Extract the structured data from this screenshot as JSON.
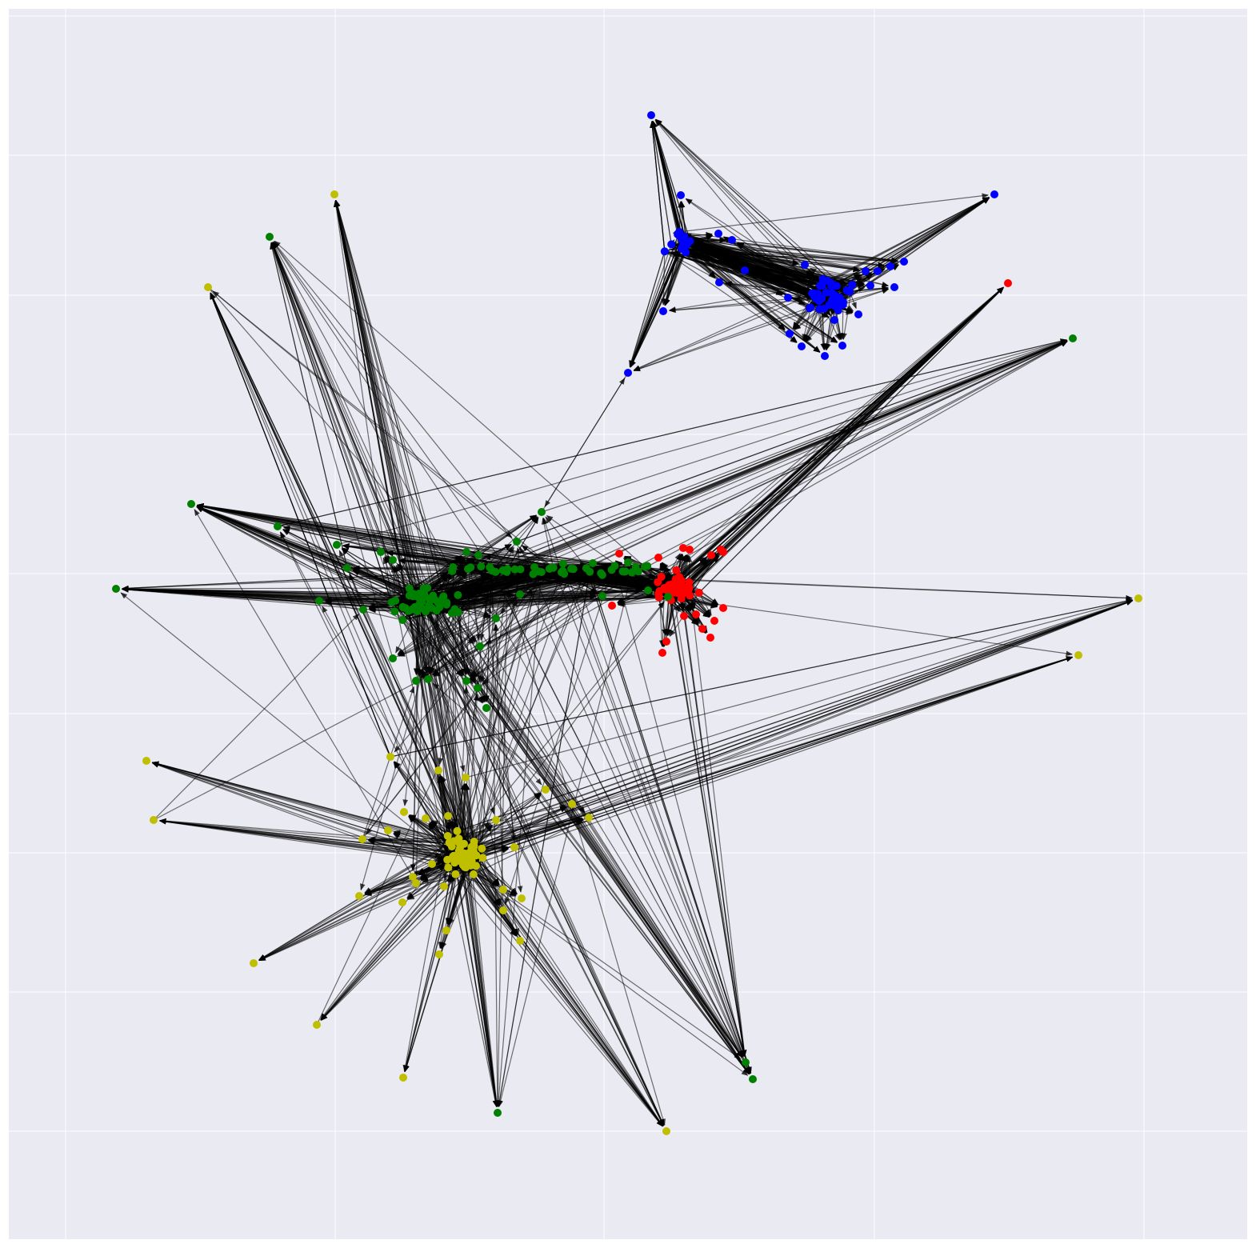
{
  "figure": {
    "kind": "directed network graph",
    "plot_background": "#eaeaf2",
    "grid_color": "#ffffff",
    "grid": true,
    "edge_color": "#000000",
    "cluster_colors": {
      "blue": "#0000ff",
      "red": "#ff0000",
      "green": "#008000",
      "yellow": "#bfbf00"
    }
  },
  "clusters": [
    {
      "name": "blue",
      "color": "#0000ff",
      "member_count_estimate": 70
    },
    {
      "name": "red",
      "color": "#ff0000",
      "member_count_estimate": 90
    },
    {
      "name": "green",
      "color": "#008000",
      "member_count_estimate": 120
    },
    {
      "name": "yellow",
      "color": "#bfbf00",
      "member_count_estimate": 110
    }
  ]
}
